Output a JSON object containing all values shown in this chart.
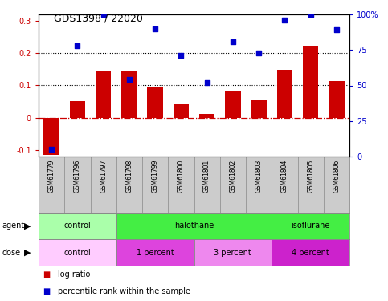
{
  "title": "GDS1398 / 22020",
  "samples": [
    "GSM61779",
    "GSM61796",
    "GSM61797",
    "GSM61798",
    "GSM61799",
    "GSM61800",
    "GSM61801",
    "GSM61802",
    "GSM61803",
    "GSM61804",
    "GSM61805",
    "GSM61806"
  ],
  "log_ratio": [
    -0.115,
    0.052,
    0.145,
    0.145,
    0.095,
    0.042,
    0.012,
    0.085,
    0.055,
    0.148,
    0.222,
    0.113
  ],
  "percentile_pct": [
    5,
    78,
    100,
    54,
    90,
    71,
    52,
    81,
    73,
    96,
    100,
    89
  ],
  "bar_color": "#cc0000",
  "dot_color": "#0000cc",
  "ylim_left": [
    -0.12,
    0.32
  ],
  "ylim_right": [
    0,
    100
  ],
  "yticks_left": [
    -0.1,
    0.0,
    0.1,
    0.2,
    0.3
  ],
  "yticks_right": [
    0,
    25,
    50,
    75,
    100
  ],
  "hlines": [
    0.1,
    0.2
  ],
  "zero_line_color": "#cc0000",
  "agent_groups": [
    {
      "label": "control",
      "start": 0,
      "end": 3,
      "color": "#aaffaa"
    },
    {
      "label": "halothane",
      "start": 3,
      "end": 9,
      "color": "#44ee44"
    },
    {
      "label": "isoflurane",
      "start": 9,
      "end": 12,
      "color": "#44ee44"
    }
  ],
  "dose_groups": [
    {
      "label": "control",
      "start": 0,
      "end": 3,
      "color": "#ffccff"
    },
    {
      "label": "1 percent",
      "start": 3,
      "end": 6,
      "color": "#dd44dd"
    },
    {
      "label": "3 percent",
      "start": 6,
      "end": 9,
      "color": "#ee88ee"
    },
    {
      "label": "4 percent",
      "start": 9,
      "end": 12,
      "color": "#cc22cc"
    }
  ],
  "legend_red": "log ratio",
  "legend_blue": "percentile rank within the sample",
  "bg_color": "#ffffff",
  "label_row_color": "#cccccc",
  "spine_color": "#000000",
  "grid_line_color": "#888888"
}
